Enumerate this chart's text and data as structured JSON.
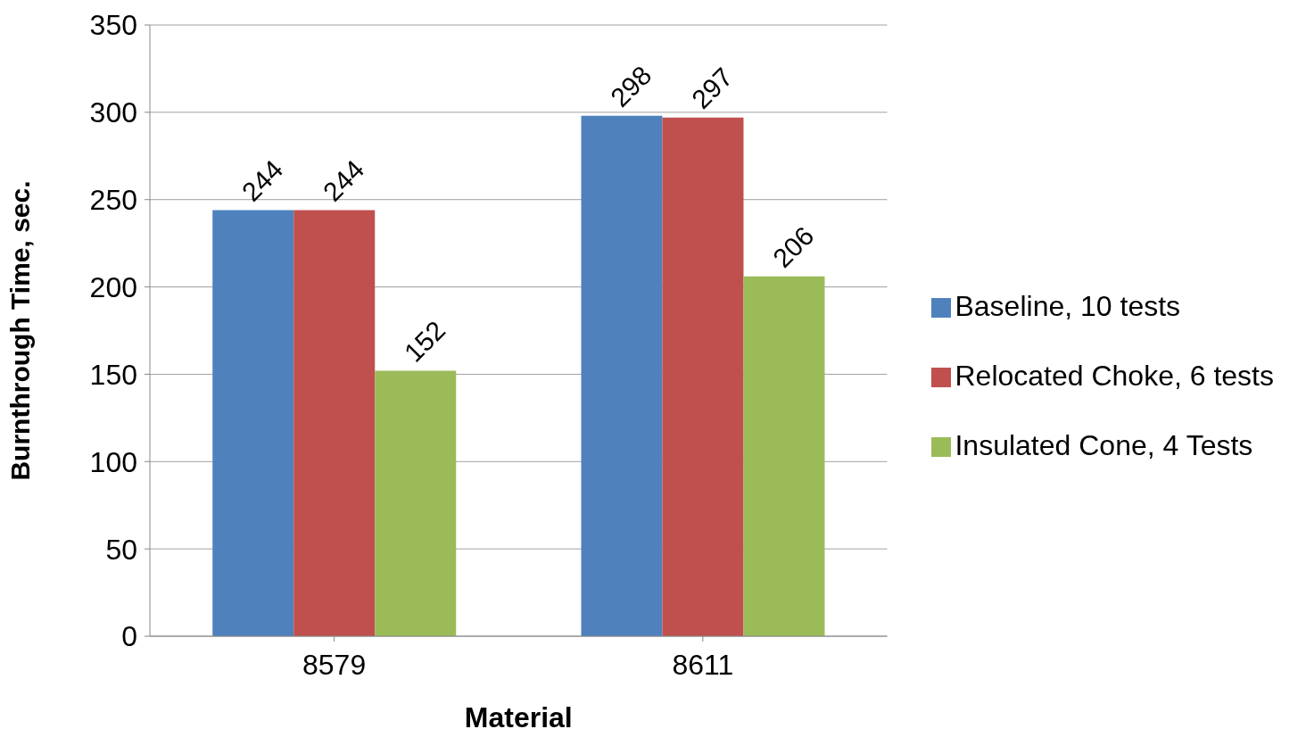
{
  "chart_data": {
    "type": "bar",
    "xlabel": "Material",
    "ylabel": "Burnthrough Time, sec.",
    "categories": [
      "8579",
      "8611"
    ],
    "series": [
      {
        "name": "Baseline, 10 tests",
        "color": "#4f81bd",
        "values": [
          244,
          298
        ]
      },
      {
        "name": "Relocated Choke, 6 tests",
        "color": "#c0504d",
        "values": [
          244,
          297
        ]
      },
      {
        "name": "Insulated Cone, 4 Tests",
        "color": "#9bbb59",
        "values": [
          152,
          206
        ]
      }
    ],
    "ylim": [
      0,
      350
    ],
    "yticks": [
      0,
      50,
      100,
      150,
      200,
      250,
      300,
      350
    ],
    "grid": "y",
    "legend": "right",
    "data_labels": true
  }
}
